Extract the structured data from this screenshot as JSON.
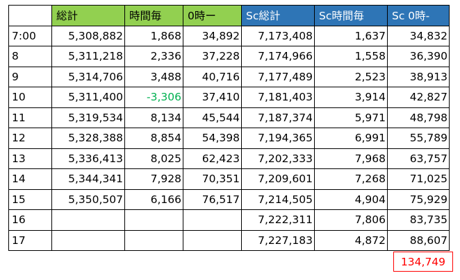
{
  "header": [
    "",
    "総計",
    "時間毎",
    "0時ー",
    "Sc総計",
    "Sc時間毎",
    "Sc 0時-"
  ],
  "rows": [
    [
      "7:00",
      "5,308,882",
      "1,868",
      "34,892",
      "7,173,408",
      "1,637",
      "34,832"
    ],
    [
      "8",
      "5,311,218",
      "2,336",
      "37,228",
      "7,174,966",
      "1,558",
      "36,390"
    ],
    [
      "9",
      "5,314,706",
      "3,488",
      "40,716",
      "7,177,489",
      "2,523",
      "38,913"
    ],
    [
      "10",
      "5,311,400",
      "-3,306",
      "37,410",
      "7,181,403",
      "3,914",
      "42,827"
    ],
    [
      "11",
      "5,319,534",
      "8,134",
      "45,544",
      "7,187,374",
      "5,971",
      "48,798"
    ],
    [
      "12",
      "5,328,388",
      "8,854",
      "54,398",
      "7,194,365",
      "6,991",
      "55,789"
    ],
    [
      "13",
      "5,336,413",
      "8,025",
      "62,423",
      "7,202,333",
      "7,968",
      "63,757"
    ],
    [
      "14",
      "5,344,341",
      "7,928",
      "70,351",
      "7,209,601",
      "7,268",
      "71,025"
    ],
    [
      "15",
      "5,350,507",
      "6,166",
      "76,517",
      "7,214,505",
      "4,904",
      "75,929"
    ],
    [
      "16",
      "",
      "",
      "",
      "7,222,311",
      "7,806",
      "83,735"
    ],
    [
      "17",
      "",
      "",
      "",
      "7,227,183",
      "4,872",
      "88,607"
    ]
  ],
  "total": "134,749",
  "colors": {
    "header_green": "#92d050",
    "header_blue": "#2e75b6",
    "negative_green": "#00b050",
    "total_red": "#ff0000"
  }
}
